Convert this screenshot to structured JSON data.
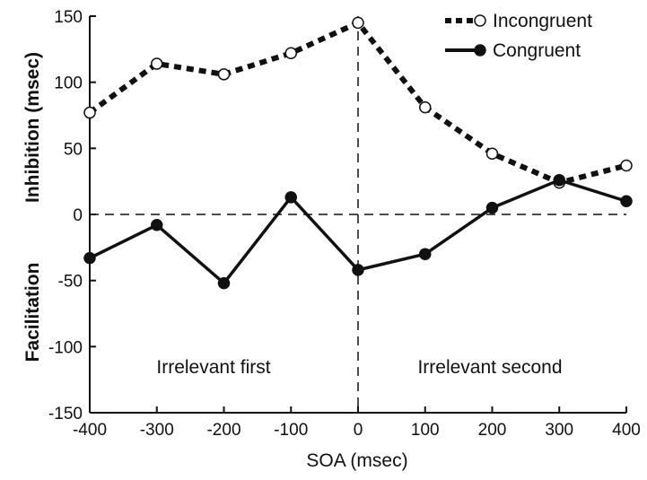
{
  "chart_data": {
    "type": "line",
    "xlabel": "SOA  (msec)",
    "ylabel_top": "Inhibition (msec)",
    "ylabel_bottom": "Facilitation",
    "xlim": [
      -400,
      400
    ],
    "ylim": [
      -150,
      150
    ],
    "xticks": [
      -400,
      -300,
      -200,
      -100,
      0,
      100,
      200,
      300,
      400
    ],
    "yticks": [
      -150,
      -100,
      -50,
      0,
      50,
      100,
      150
    ],
    "x": [
      -400,
      -300,
      -200,
      -100,
      0,
      100,
      200,
      300,
      400
    ],
    "series": [
      {
        "name": "Incongruent",
        "values": [
          77,
          114,
          106,
          122,
          145,
          81,
          46,
          24,
          37
        ],
        "line_style": "dashed",
        "marker": "open-circle"
      },
      {
        "name": "Congruent",
        "values": [
          -33,
          -8,
          -52,
          13,
          -42,
          -30,
          5,
          26,
          10
        ],
        "line_style": "solid",
        "marker": "filled-circle"
      }
    ],
    "reference_lines": {
      "horizontal_dashed_at_y": 0,
      "vertical_dashed_at_x": 0
    },
    "annotations": [
      {
        "text": "Irrelevant first",
        "x": -200,
        "y": -115
      },
      {
        "text": "Irrelevant second",
        "x": 200,
        "y": -115
      }
    ],
    "legend_position": "top-right",
    "grid": false
  }
}
